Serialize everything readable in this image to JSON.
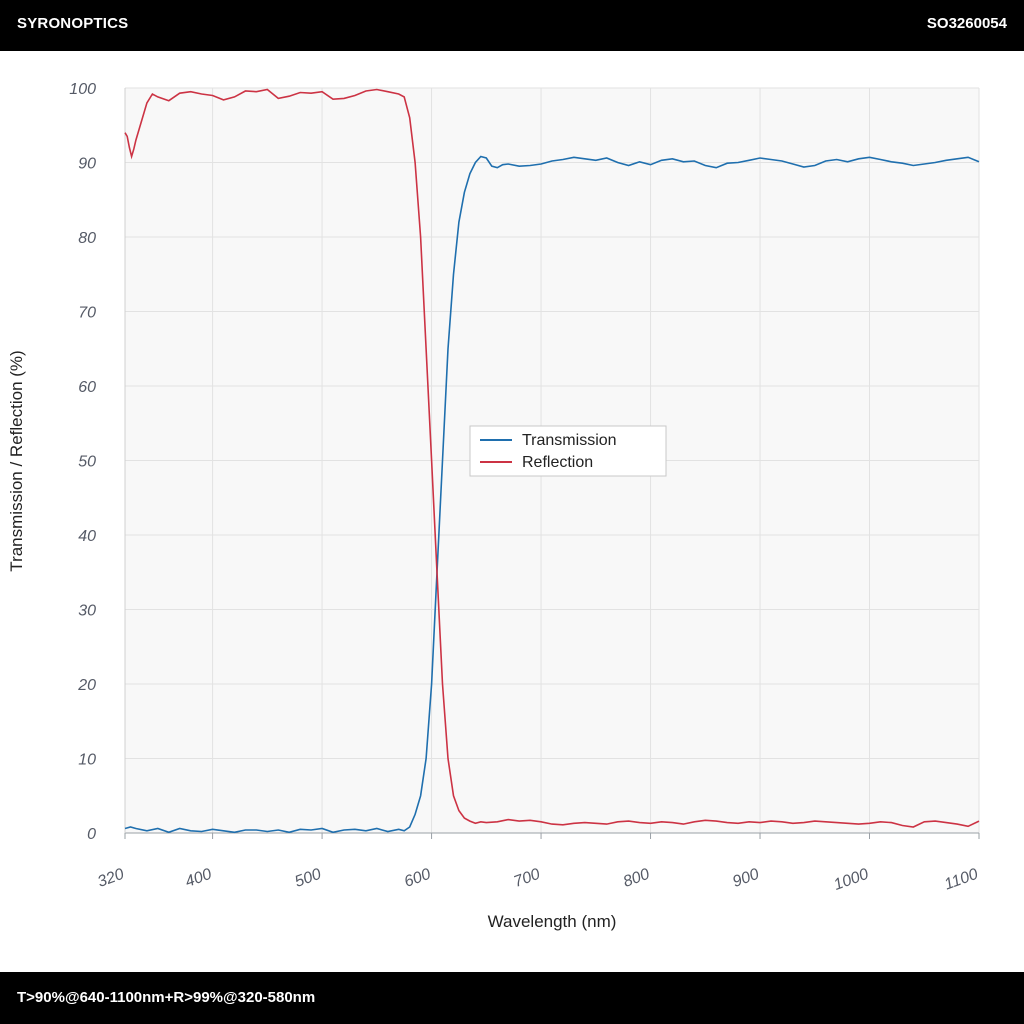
{
  "header": {
    "brand": "SYRONOPTICS",
    "part_number": "SO3260054"
  },
  "footer": {
    "spec": "T>90%@640-1100nm+R>99%@320-580nm"
  },
  "colors": {
    "transmission": "#1f6fae",
    "reflection": "#cc3344",
    "plot_bg": "#f8f8f8",
    "grid": "#e2e2e2"
  },
  "chart_data": {
    "type": "line",
    "xlabel": "Wavelength (nm)",
    "ylabel": "Transmission / Reflection (%)",
    "xlim": [
      320,
      1100
    ],
    "ylim": [
      0,
      100
    ],
    "x_ticks": [
      320,
      400,
      500,
      600,
      700,
      800,
      900,
      1000,
      1100
    ],
    "y_ticks": [
      0,
      10,
      20,
      30,
      40,
      50,
      60,
      70,
      80,
      90,
      100
    ],
    "grid": true,
    "legend_position": "center",
    "series": [
      {
        "name": "Transmission",
        "color": "#1f6fae",
        "x": [
          320,
          325,
          330,
          340,
          350,
          360,
          370,
          380,
          390,
          400,
          410,
          420,
          430,
          440,
          450,
          460,
          470,
          480,
          490,
          500,
          510,
          520,
          530,
          540,
          550,
          560,
          570,
          575,
          580,
          585,
          590,
          595,
          600,
          605,
          610,
          615,
          620,
          625,
          630,
          635,
          640,
          645,
          650,
          655,
          660,
          665,
          670,
          680,
          690,
          700,
          710,
          720,
          730,
          740,
          750,
          760,
          770,
          780,
          790,
          800,
          810,
          820,
          830,
          840,
          850,
          860,
          870,
          880,
          890,
          900,
          910,
          920,
          930,
          940,
          950,
          960,
          970,
          980,
          990,
          1000,
          1010,
          1020,
          1030,
          1040,
          1050,
          1060,
          1070,
          1080,
          1090,
          1100
        ],
        "y": [
          0.6,
          0.8,
          0.6,
          0.3,
          0.6,
          0.1,
          0.6,
          0.3,
          0.2,
          0.5,
          0.3,
          0.1,
          0.4,
          0.4,
          0.2,
          0.4,
          0.1,
          0.5,
          0.4,
          0.6,
          0.1,
          0.4,
          0.5,
          0.3,
          0.6,
          0.2,
          0.5,
          0.3,
          0.8,
          2.5,
          5,
          10,
          20,
          35,
          50,
          65,
          75,
          82,
          86,
          88.5,
          90,
          90.8,
          90.6,
          89.5,
          89.3,
          89.7,
          89.8,
          89.5,
          89.6,
          89.8,
          90.2,
          90.4,
          90.7,
          90.5,
          90.3,
          90.6,
          90.0,
          89.6,
          90.1,
          89.7,
          90.3,
          90.5,
          90.1,
          90.2,
          89.6,
          89.3,
          89.9,
          90.0,
          90.3,
          90.6,
          90.4,
          90.2,
          89.8,
          89.4,
          89.6,
          90.2,
          90.4,
          90.1,
          90.5,
          90.7,
          90.4,
          90.1,
          89.9,
          89.6,
          89.8,
          90.0,
          90.3,
          90.5,
          90.7,
          90.1
        ]
      },
      {
        "name": "Reflection",
        "color": "#cc3344",
        "x": [
          320,
          322,
          324,
          326,
          328,
          330,
          335,
          340,
          345,
          350,
          360,
          370,
          380,
          390,
          400,
          410,
          420,
          430,
          440,
          450,
          460,
          470,
          480,
          490,
          500,
          510,
          520,
          530,
          540,
          550,
          560,
          570,
          575,
          580,
          585,
          590,
          595,
          600,
          605,
          610,
          615,
          620,
          625,
          630,
          635,
          640,
          645,
          650,
          660,
          670,
          680,
          690,
          700,
          710,
          720,
          730,
          740,
          750,
          760,
          770,
          780,
          790,
          800,
          810,
          820,
          830,
          840,
          850,
          860,
          870,
          880,
          890,
          900,
          910,
          920,
          930,
          940,
          950,
          960,
          970,
          980,
          990,
          1000,
          1010,
          1020,
          1030,
          1040,
          1050,
          1060,
          1070,
          1080,
          1090,
          1100
        ],
        "y": [
          94,
          93.5,
          92,
          90.8,
          91.8,
          93,
          95.5,
          98,
          99.2,
          98.8,
          98.3,
          99.3,
          99.5,
          99.2,
          99.0,
          98.4,
          98.8,
          99.6,
          99.5,
          99.8,
          98.6,
          98.9,
          99.4,
          99.3,
          99.5,
          98.5,
          98.6,
          99.0,
          99.6,
          99.8,
          99.5,
          99.2,
          98.8,
          96,
          90,
          80,
          65,
          50,
          35,
          20,
          10,
          5,
          3,
          2,
          1.6,
          1.3,
          1.5,
          1.4,
          1.5,
          1.8,
          1.6,
          1.7,
          1.5,
          1.2,
          1.1,
          1.3,
          1.4,
          1.3,
          1.2,
          1.5,
          1.6,
          1.4,
          1.3,
          1.5,
          1.4,
          1.2,
          1.5,
          1.7,
          1.6,
          1.4,
          1.3,
          1.5,
          1.4,
          1.6,
          1.5,
          1.3,
          1.4,
          1.6,
          1.5,
          1.4,
          1.3,
          1.2,
          1.3,
          1.5,
          1.4,
          1.0,
          0.8,
          1.5,
          1.6,
          1.4,
          1.2,
          0.9,
          1.6
        ]
      }
    ]
  }
}
